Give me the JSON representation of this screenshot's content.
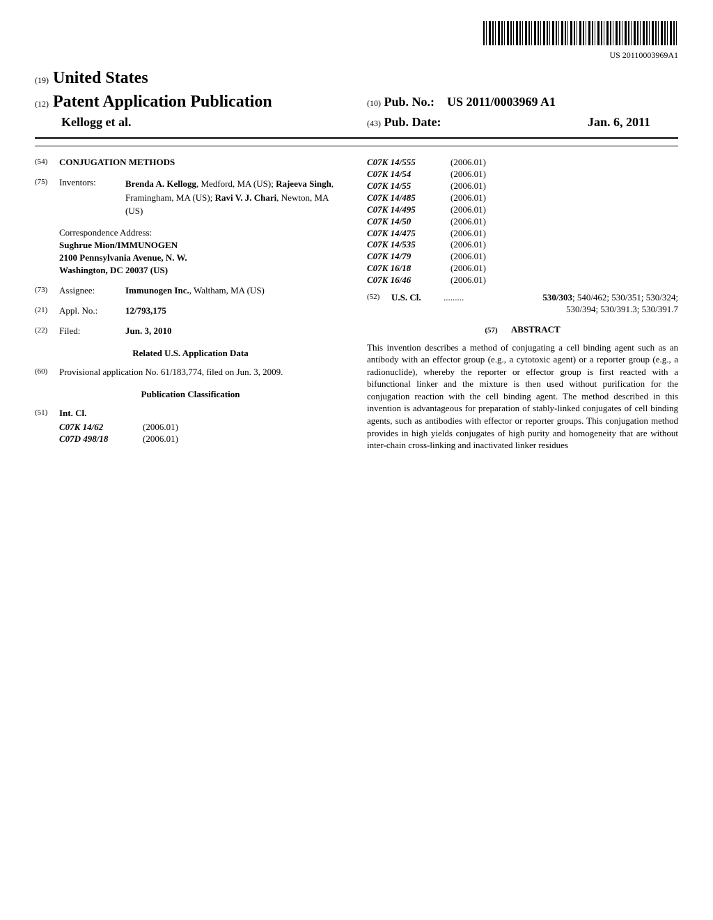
{
  "barcode_number": "US 20110003969A1",
  "header": {
    "num_19": "(19)",
    "country": "United States",
    "num_12": "(12)",
    "doc_type": "Patent Application Publication",
    "authors": "Kellogg et al.",
    "num_10": "(10)",
    "pub_no_label": "Pub. No.:",
    "pub_no": "US 2011/0003969 A1",
    "num_43": "(43)",
    "pub_date_label": "Pub. Date:",
    "pub_date": "Jan. 6, 2011"
  },
  "left_col": {
    "field_54": {
      "num": "(54)",
      "title": "CONJUGATION METHODS"
    },
    "field_75": {
      "num": "(75)",
      "label": "Inventors:",
      "value": "<b>Brenda A. Kellogg</b>, Medford, MA (US); <b>Rajeeva Singh</b>, Framingham, MA (US); <b>Ravi V. J. Chari</b>, Newton, MA (US)"
    },
    "corr": {
      "label": "Correspondence Address:",
      "line1": "Sughrue Mion/IMMUNOGEN",
      "line2": "2100 Pennsylvania Avenue, N. W.",
      "line3": "Washington, DC 20037 (US)"
    },
    "field_73": {
      "num": "(73)",
      "label": "Assignee:",
      "value": "<b>Immunogen Inc.</b>, Waltham, MA (US)"
    },
    "field_21": {
      "num": "(21)",
      "label": "Appl. No.:",
      "value": "<b>12/793,175</b>"
    },
    "field_22": {
      "num": "(22)",
      "label": "Filed:",
      "value": "<b>Jun. 3, 2010</b>"
    },
    "related_header": "Related U.S. Application Data",
    "field_60": {
      "num": "(60)",
      "text": "Provisional application No. 61/183,774, filed on Jun. 3, 2009."
    },
    "pub_class_header": "Publication Classification",
    "field_51": {
      "num": "(51)",
      "label": "Int. Cl."
    },
    "int_cl_left": [
      {
        "code": "C07K 14/62",
        "year": "(2006.01)"
      },
      {
        "code": "C07D 498/18",
        "year": "(2006.01)"
      }
    ]
  },
  "right_col": {
    "int_cl_right": [
      {
        "code": "C07K 14/555",
        "year": "(2006.01)"
      },
      {
        "code": "C07K 14/54",
        "year": "(2006.01)"
      },
      {
        "code": "C07K 14/55",
        "year": "(2006.01)"
      },
      {
        "code": "C07K 14/485",
        "year": "(2006.01)"
      },
      {
        "code": "C07K 14/495",
        "year": "(2006.01)"
      },
      {
        "code": "C07K 14/50",
        "year": "(2006.01)"
      },
      {
        "code": "C07K 14/475",
        "year": "(2006.01)"
      },
      {
        "code": "C07K 14/535",
        "year": "(2006.01)"
      },
      {
        "code": "C07K 14/79",
        "year": "(2006.01)"
      },
      {
        "code": "C07K 16/18",
        "year": "(2006.01)"
      },
      {
        "code": "C07K 16/46",
        "year": "(2006.01)"
      }
    ],
    "field_52": {
      "num": "(52)",
      "label": "U.S. Cl.",
      "dots": ".........",
      "line1": "<b>530/303</b>; 540/462; 530/351; 530/324;",
      "line2": "530/394; 530/391.3; 530/391.7"
    },
    "abstract": {
      "num": "(57)",
      "header": "ABSTRACT",
      "text": "This invention describes a method of conjugating a cell binding agent such as an antibody with an effector group (e.g., a cytotoxic agent) or a reporter group (e.g., a radionuclide), whereby the reporter or effector group is first reacted with a bifunctional linker and the mixture is then used without purification for the conjugation reaction with the cell binding agent. The method described in this invention is advantageous for preparation of stably-linked conjugates of cell binding agents, such as antibodies with effector or reporter groups. This conjugation method provides in high yields conjugates of high purity and homogeneity that are without inter-chain cross-linking and inactivated linker residues"
    }
  }
}
